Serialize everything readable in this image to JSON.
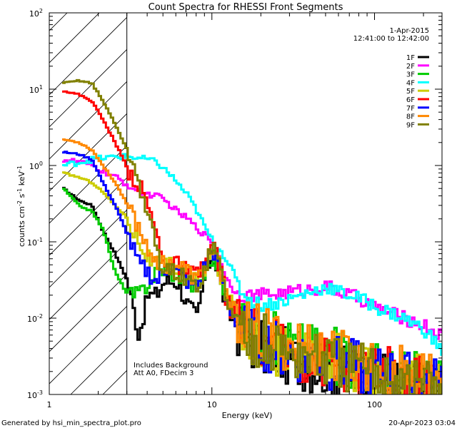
{
  "chart_data": {
    "type": "line",
    "title": "Count Spectra for RHESSI Front Segments",
    "xlabel": "Energy (keV)",
    "ylabel": "counts cm",
    "ylabel_sup1": "-2",
    "ylabel_mid": " s",
    "ylabel_sup2": "-1",
    "ylabel_end": " keV",
    "ylabel_sup3": "-1",
    "xscale": "log",
    "yscale": "log",
    "xlim": [
      1,
      260
    ],
    "ylim": [
      0.001,
      100
    ],
    "x_ticks": [
      {
        "value": 1,
        "label": "1"
      },
      {
        "value": 10,
        "label": "10"
      },
      {
        "value": 100,
        "label": "100"
      }
    ],
    "y_ticks": [
      {
        "value": 0.001,
        "base": "10",
        "exp": "-3"
      },
      {
        "value": 0.01,
        "base": "10",
        "exp": "-2"
      },
      {
        "value": 0.1,
        "base": "10",
        "exp": "-1"
      },
      {
        "value": 1,
        "base": "10",
        "exp": "0"
      },
      {
        "value": 10,
        "base": "10",
        "exp": "1"
      },
      {
        "value": 100,
        "base": "10",
        "exp": "2"
      }
    ],
    "hatched_region": {
      "x_start": 1,
      "x_end": 3
    },
    "legend": {
      "position": "top-right",
      "date": "1-Apr-2015",
      "time_range": "12:41:00 to 12:42:00"
    },
    "annotations": [
      "Includes Background",
      "Att A0, FDecim 3"
    ],
    "footer_left": "Generated by hsi_min_spectra_plot.pro",
    "footer_right": "20-Apr-2023 03:04",
    "base_x": [
      1.2,
      1.5,
      1.8,
      2.1,
      2.5,
      3,
      3.5,
      4,
      4.5,
      5,
      5.5,
      6,
      7,
      8,
      9,
      10,
      11,
      12,
      13,
      14,
      15,
      17,
      20,
      25,
      30,
      40,
      50,
      60,
      70,
      80,
      90,
      100,
      120,
      150,
      200,
      250
    ],
    "series": [
      {
        "name": "1F",
        "color": "#000000",
        "values": [
          0.5,
          0.35,
          0.3,
          0.14,
          0.07,
          0.03,
          0.006,
          0.02,
          0.02,
          0.03,
          0.03,
          0.03,
          0.015,
          0.01,
          0.04,
          0.07,
          0.03,
          0.015,
          0.01,
          0.008,
          0.006,
          0.005,
          0.004,
          0.0035,
          0.003,
          0.0025,
          0.0022,
          0.002,
          0.0018,
          0.0017,
          0.0016,
          0.0015,
          0.0014,
          0.0013,
          0.0012,
          0.0011
        ]
      },
      {
        "name": "2F",
        "color": "#ff00ff",
        "values": [
          1.2,
          1.1,
          1.0,
          0.85,
          0.7,
          0.55,
          0.45,
          0.42,
          0.4,
          0.35,
          0.3,
          0.25,
          0.2,
          0.15,
          0.12,
          0.1,
          0.06,
          0.035,
          0.025,
          0.022,
          0.02,
          0.02,
          0.02,
          0.021,
          0.022,
          0.024,
          0.026,
          0.022,
          0.02,
          0.018,
          0.016,
          0.014,
          0.012,
          0.01,
          0.008,
          0.006
        ]
      },
      {
        "name": "3F",
        "color": "#00cc00",
        "values": [
          0.5,
          0.3,
          0.25,
          0.15,
          0.04,
          0.02,
          0.02,
          0.03,
          0.04,
          0.045,
          0.04,
          0.04,
          0.03,
          0.025,
          0.04,
          0.07,
          0.04,
          0.02,
          0.015,
          0.012,
          0.01,
          0.008,
          0.006,
          0.005,
          0.0045,
          0.004,
          0.0035,
          0.003,
          0.0028,
          0.0026,
          0.0024,
          0.0022,
          0.002,
          0.0018,
          0.0016,
          0.0015
        ]
      },
      {
        "name": "4F",
        "color": "#00ffff",
        "values": [
          1.0,
          1.1,
          1.2,
          1.25,
          1.3,
          1.3,
          1.25,
          1.2,
          1.1,
          0.9,
          0.75,
          0.6,
          0.4,
          0.25,
          0.15,
          0.1,
          0.08,
          0.06,
          0.045,
          0.03,
          0.022,
          0.017,
          0.015,
          0.016,
          0.018,
          0.022,
          0.026,
          0.022,
          0.02,
          0.018,
          0.016,
          0.014,
          0.012,
          0.01,
          0.007,
          0.004
        ]
      },
      {
        "name": "5F",
        "color": "#cccc00",
        "values": [
          0.8,
          0.7,
          0.6,
          0.45,
          0.3,
          0.2,
          0.1,
          0.06,
          0.05,
          0.045,
          0.05,
          0.045,
          0.04,
          0.03,
          0.05,
          0.07,
          0.04,
          0.02,
          0.015,
          0.01,
          0.008,
          0.006,
          0.005,
          0.004,
          0.0035,
          0.003,
          0.0028,
          0.0026,
          0.0024,
          0.0022,
          0.002,
          0.0019,
          0.0018,
          0.0016,
          0.0014,
          0.0012
        ]
      },
      {
        "name": "6F",
        "color": "#ff0000",
        "values": [
          9.5,
          8.5,
          7.0,
          4.0,
          2.0,
          0.9,
          0.55,
          0.3,
          0.12,
          0.06,
          0.05,
          0.05,
          0.04,
          0.035,
          0.06,
          0.09,
          0.05,
          0.02,
          0.012,
          0.009,
          0.007,
          0.006,
          0.005,
          0.004,
          0.0035,
          0.003,
          0.0028,
          0.0025,
          0.0023,
          0.0022,
          0.002,
          0.0019,
          0.0018,
          0.0016,
          0.0014,
          0.0013
        ]
      },
      {
        "name": "7F",
        "color": "#0000ff",
        "values": [
          1.5,
          1.4,
          1.2,
          0.6,
          0.3,
          0.12,
          0.05,
          0.04,
          0.03,
          0.04,
          0.05,
          0.04,
          0.03,
          0.025,
          0.05,
          0.08,
          0.04,
          0.018,
          0.012,
          0.009,
          0.007,
          0.006,
          0.005,
          0.004,
          0.0035,
          0.003,
          0.0027,
          0.0025,
          0.0023,
          0.0021,
          0.002,
          0.0019,
          0.0018,
          0.0016,
          0.0014,
          0.0013
        ]
      },
      {
        "name": "8F",
        "color": "#ff8800",
        "values": [
          2.2,
          2.0,
          1.6,
          1.0,
          0.6,
          0.3,
          0.15,
          0.08,
          0.06,
          0.05,
          0.05,
          0.05,
          0.04,
          0.03,
          0.05,
          0.08,
          0.05,
          0.02,
          0.014,
          0.011,
          0.009,
          0.007,
          0.006,
          0.005,
          0.0045,
          0.004,
          0.0035,
          0.003,
          0.0028,
          0.0026,
          0.0024,
          0.0022,
          0.002,
          0.0018,
          0.0016,
          0.0014
        ]
      },
      {
        "name": "9F",
        "color": "#808000",
        "values": [
          12,
          13,
          12,
          7.0,
          3.5,
          1.5,
          0.6,
          0.22,
          0.08,
          0.04,
          0.04,
          0.04,
          0.03,
          0.025,
          0.05,
          0.09,
          0.05,
          0.02,
          0.012,
          0.009,
          0.007,
          0.006,
          0.005,
          0.004,
          0.0035,
          0.003,
          0.0027,
          0.0025,
          0.0023,
          0.0021,
          0.002,
          0.0019,
          0.0018,
          0.0016,
          0.0014,
          0.0013
        ]
      }
    ]
  }
}
